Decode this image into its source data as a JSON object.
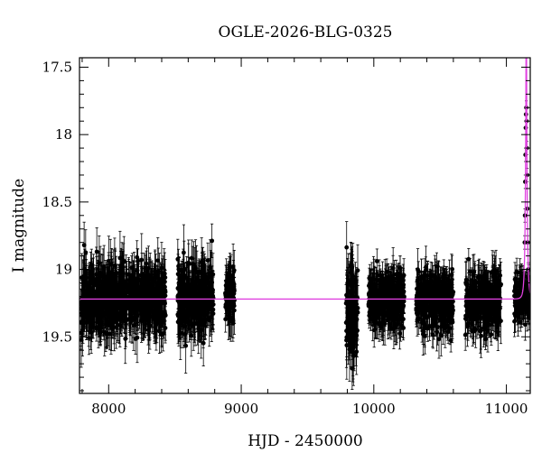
{
  "chart_data": {
    "type": "scatter",
    "title": "OGLE-2026-BLG-0325",
    "xlabel": "HJD - 2450000",
    "ylabel": "I magnitude",
    "xlim": [
      7780,
      11180
    ],
    "ylim": [
      19.92,
      17.43
    ],
    "y_inverted": true,
    "x_ticks": [
      8000,
      9000,
      10000,
      11000
    ],
    "x_tick_labels": [
      "8000",
      "9000",
      "10000",
      "11000"
    ],
    "y_ticks": [
      17.5,
      18,
      18.5,
      19,
      19.5
    ],
    "y_tick_labels": [
      "17.5",
      "18",
      "18.5",
      "19",
      "19.5"
    ],
    "grid": false,
    "series": [
      {
        "kind": "observations",
        "color": "#000000",
        "error_bars": true,
        "seasons": [
          {
            "x_range": [
              7790,
              8140
            ],
            "mean_mag": 19.22,
            "mag_scatter": 0.12,
            "typical_error": 0.15
          },
          {
            "x_range": [
              8150,
              8430
            ],
            "mean_mag": 19.22,
            "mag_scatter": 0.11,
            "typical_error": 0.14
          },
          {
            "x_range": [
              8520,
              8790
            ],
            "mean_mag": 19.22,
            "mag_scatter": 0.12,
            "typical_error": 0.15
          },
          {
            "x_range": [
              8880,
              8950
            ],
            "mean_mag": 19.18,
            "mag_scatter": 0.1,
            "typical_error": 0.13
          },
          {
            "x_range": [
              9790,
              9880
            ],
            "mean_mag": 19.3,
            "mag_scatter": 0.15,
            "typical_error": 0.18
          },
          {
            "x_range": [
              9960,
              10230
            ],
            "mean_mag": 19.23,
            "mag_scatter": 0.1,
            "typical_error": 0.12
          },
          {
            "x_range": [
              10320,
              10600
            ],
            "mean_mag": 19.23,
            "mag_scatter": 0.1,
            "typical_error": 0.12
          },
          {
            "x_range": [
              10690,
              10960
            ],
            "mean_mag": 19.24,
            "mag_scatter": 0.1,
            "typical_error": 0.12
          },
          {
            "x_range": [
              11060,
              11180
            ],
            "mean_mag": 19.2,
            "mag_scatter": 0.08,
            "typical_error": 0.1
          }
        ],
        "event_points": [
          {
            "x": 11135,
            "y": 19.05
          },
          {
            "x": 11138,
            "y": 18.8
          },
          {
            "x": 11140,
            "y": 18.6
          },
          {
            "x": 11142,
            "y": 18.35
          },
          {
            "x": 11144,
            "y": 18.15
          },
          {
            "x": 11146,
            "y": 17.95
          },
          {
            "x": 11148,
            "y": 17.85
          },
          {
            "x": 11150,
            "y": 17.8
          },
          {
            "x": 11152,
            "y": 17.9
          },
          {
            "x": 11154,
            "y": 18.1
          },
          {
            "x": 11156,
            "y": 18.3
          },
          {
            "x": 11158,
            "y": 18.55
          },
          {
            "x": 11161,
            "y": 18.8
          },
          {
            "x": 11165,
            "y": 19.0
          },
          {
            "x": 11170,
            "y": 19.1
          },
          {
            "x": 11176,
            "y": 19.15
          }
        ]
      },
      {
        "kind": "model",
        "color": "#e040e0",
        "baseline_mag": 19.22,
        "peak_x": 11150,
        "peak_mag": 17.52,
        "u0": 0.1,
        "tE": 13
      }
    ]
  }
}
